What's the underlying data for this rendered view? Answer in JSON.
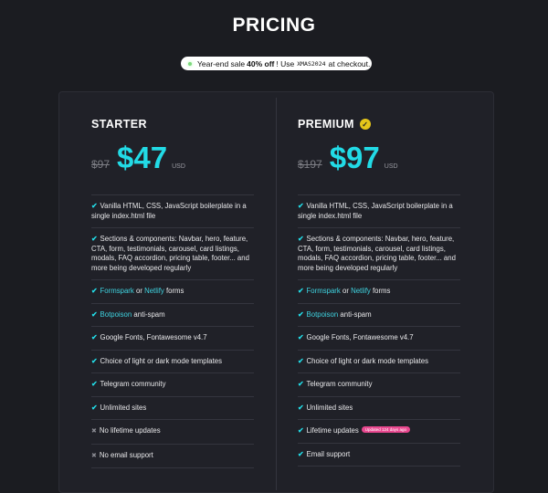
{
  "page": {
    "title": "PRICING"
  },
  "banner": {
    "prefix": "Year-end sale",
    "bold": "40% off",
    "mid": "! Use",
    "code": "XMAS2024",
    "suffix": "at checkout."
  },
  "plans": [
    {
      "name": "STARTER",
      "old_price": "$97",
      "price": "$47",
      "currency": "USD"
    },
    {
      "name": "PREMIUM",
      "old_price": "$197",
      "price": "$97",
      "currency": "USD",
      "badge": "verified-check-icon"
    }
  ],
  "features": {
    "f1": "Vanilla HTML, CSS, JavaScript boilerplate in a single index.html file",
    "f2": "Sections & components: Navbar, hero, feature, CTA, form, testimonials, carousel, card listings, modals, FAQ accordion, pricing table, footer... and more being developed regularly",
    "f3_a": "Formspark",
    "f3_or": "or",
    "f3_b": "Netlify",
    "f3_c": "forms",
    "f4_a": "Botpoison",
    "f4_b": "anti-spam",
    "f5": "Google Fonts, Fontawesome v4.7",
    "f6": "Choice of light or dark mode templates",
    "f7": "Telegram community",
    "f8": "Unlimited sites",
    "starter_f9": "No lifetime updates",
    "starter_f10": "No email support",
    "premium_f9": "Lifetime updates",
    "premium_f9_pill": "Updated 124 days ago",
    "premium_f10": "Email support"
  },
  "colors": {
    "accent": "#22dbe6",
    "badge": "#e5c51a",
    "pill": "#e8488f"
  }
}
